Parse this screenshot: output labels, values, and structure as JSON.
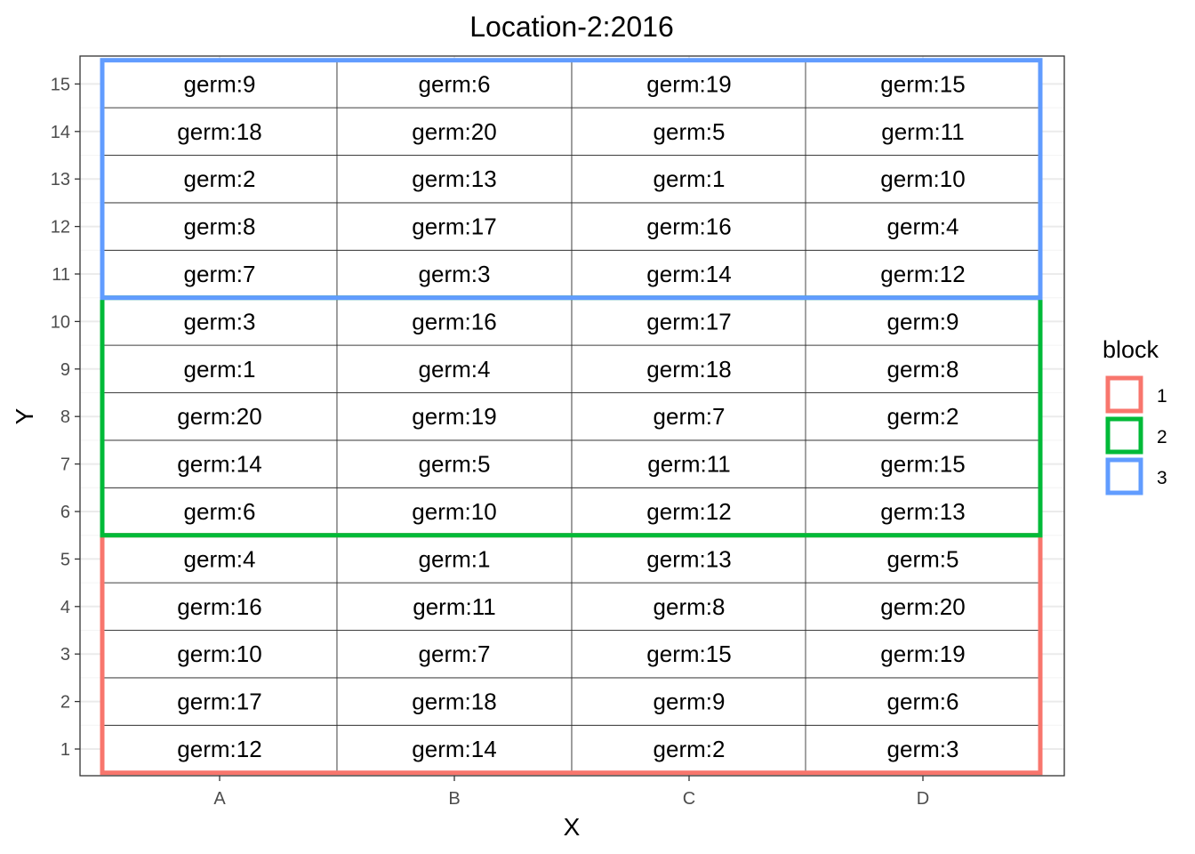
{
  "chart_data": {
    "type": "heatmap",
    "title": "Location-2:2016",
    "xlabel": "X",
    "ylabel": "Y",
    "x_categories": [
      "A",
      "B",
      "C",
      "D"
    ],
    "y_ticks": [
      1,
      2,
      3,
      4,
      5,
      6,
      7,
      8,
      9,
      10,
      11,
      12,
      13,
      14,
      15
    ],
    "grid": true,
    "legend": {
      "title": "block",
      "placement": "right",
      "items": [
        {
          "label": "1",
          "color": "#F8766D"
        },
        {
          "label": "2",
          "color": "#00BA38"
        },
        {
          "label": "3",
          "color": "#619CFF"
        }
      ]
    },
    "blocks": [
      {
        "block": "1",
        "y_range": [
          1,
          5
        ],
        "color": "#F8766D"
      },
      {
        "block": "2",
        "y_range": [
          6,
          10
        ],
        "color": "#00BA38"
      },
      {
        "block": "3",
        "y_range": [
          11,
          15
        ],
        "color": "#619CFF"
      }
    ],
    "cells": [
      {
        "x": "A",
        "y": 1,
        "label": "germ:12",
        "block": "1"
      },
      {
        "x": "B",
        "y": 1,
        "label": "germ:14",
        "block": "1"
      },
      {
        "x": "C",
        "y": 1,
        "label": "germ:2",
        "block": "1"
      },
      {
        "x": "D",
        "y": 1,
        "label": "germ:3",
        "block": "1"
      },
      {
        "x": "A",
        "y": 2,
        "label": "germ:17",
        "block": "1"
      },
      {
        "x": "B",
        "y": 2,
        "label": "germ:18",
        "block": "1"
      },
      {
        "x": "C",
        "y": 2,
        "label": "germ:9",
        "block": "1"
      },
      {
        "x": "D",
        "y": 2,
        "label": "germ:6",
        "block": "1"
      },
      {
        "x": "A",
        "y": 3,
        "label": "germ:10",
        "block": "1"
      },
      {
        "x": "B",
        "y": 3,
        "label": "germ:7",
        "block": "1"
      },
      {
        "x": "C",
        "y": 3,
        "label": "germ:15",
        "block": "1"
      },
      {
        "x": "D",
        "y": 3,
        "label": "germ:19",
        "block": "1"
      },
      {
        "x": "A",
        "y": 4,
        "label": "germ:16",
        "block": "1"
      },
      {
        "x": "B",
        "y": 4,
        "label": "germ:11",
        "block": "1"
      },
      {
        "x": "C",
        "y": 4,
        "label": "germ:8",
        "block": "1"
      },
      {
        "x": "D",
        "y": 4,
        "label": "germ:20",
        "block": "1"
      },
      {
        "x": "A",
        "y": 5,
        "label": "germ:4",
        "block": "1"
      },
      {
        "x": "B",
        "y": 5,
        "label": "germ:1",
        "block": "1"
      },
      {
        "x": "C",
        "y": 5,
        "label": "germ:13",
        "block": "1"
      },
      {
        "x": "D",
        "y": 5,
        "label": "germ:5",
        "block": "1"
      },
      {
        "x": "A",
        "y": 6,
        "label": "germ:6",
        "block": "2"
      },
      {
        "x": "B",
        "y": 6,
        "label": "germ:10",
        "block": "2"
      },
      {
        "x": "C",
        "y": 6,
        "label": "germ:12",
        "block": "2"
      },
      {
        "x": "D",
        "y": 6,
        "label": "germ:13",
        "block": "2"
      },
      {
        "x": "A",
        "y": 7,
        "label": "germ:14",
        "block": "2"
      },
      {
        "x": "B",
        "y": 7,
        "label": "germ:5",
        "block": "2"
      },
      {
        "x": "C",
        "y": 7,
        "label": "germ:11",
        "block": "2"
      },
      {
        "x": "D",
        "y": 7,
        "label": "germ:15",
        "block": "2"
      },
      {
        "x": "A",
        "y": 8,
        "label": "germ:20",
        "block": "2"
      },
      {
        "x": "B",
        "y": 8,
        "label": "germ:19",
        "block": "2"
      },
      {
        "x": "C",
        "y": 8,
        "label": "germ:7",
        "block": "2"
      },
      {
        "x": "D",
        "y": 8,
        "label": "germ:2",
        "block": "2"
      },
      {
        "x": "A",
        "y": 9,
        "label": "germ:1",
        "block": "2"
      },
      {
        "x": "B",
        "y": 9,
        "label": "germ:4",
        "block": "2"
      },
      {
        "x": "C",
        "y": 9,
        "label": "germ:18",
        "block": "2"
      },
      {
        "x": "D",
        "y": 9,
        "label": "germ:8",
        "block": "2"
      },
      {
        "x": "A",
        "y": 10,
        "label": "germ:3",
        "block": "2"
      },
      {
        "x": "B",
        "y": 10,
        "label": "germ:16",
        "block": "2"
      },
      {
        "x": "C",
        "y": 10,
        "label": "germ:17",
        "block": "2"
      },
      {
        "x": "D",
        "y": 10,
        "label": "germ:9",
        "block": "2"
      },
      {
        "x": "A",
        "y": 11,
        "label": "germ:7",
        "block": "3"
      },
      {
        "x": "B",
        "y": 11,
        "label": "germ:3",
        "block": "3"
      },
      {
        "x": "C",
        "y": 11,
        "label": "germ:14",
        "block": "3"
      },
      {
        "x": "D",
        "y": 11,
        "label": "germ:12",
        "block": "3"
      },
      {
        "x": "A",
        "y": 12,
        "label": "germ:8",
        "block": "3"
      },
      {
        "x": "B",
        "y": 12,
        "label": "germ:17",
        "block": "3"
      },
      {
        "x": "C",
        "y": 12,
        "label": "germ:16",
        "block": "3"
      },
      {
        "x": "D",
        "y": 12,
        "label": "germ:4",
        "block": "3"
      },
      {
        "x": "A",
        "y": 13,
        "label": "germ:2",
        "block": "3"
      },
      {
        "x": "B",
        "y": 13,
        "label": "germ:13",
        "block": "3"
      },
      {
        "x": "C",
        "y": 13,
        "label": "germ:1",
        "block": "3"
      },
      {
        "x": "D",
        "y": 13,
        "label": "germ:10",
        "block": "3"
      },
      {
        "x": "A",
        "y": 14,
        "label": "germ:18",
        "block": "3"
      },
      {
        "x": "B",
        "y": 14,
        "label": "germ:20",
        "block": "3"
      },
      {
        "x": "C",
        "y": 14,
        "label": "germ:5",
        "block": "3"
      },
      {
        "x": "D",
        "y": 14,
        "label": "germ:11",
        "block": "3"
      },
      {
        "x": "A",
        "y": 15,
        "label": "germ:9",
        "block": "3"
      },
      {
        "x": "B",
        "y": 15,
        "label": "germ:6",
        "block": "3"
      },
      {
        "x": "C",
        "y": 15,
        "label": "germ:19",
        "block": "3"
      },
      {
        "x": "D",
        "y": 15,
        "label": "germ:15",
        "block": "3"
      }
    ]
  }
}
